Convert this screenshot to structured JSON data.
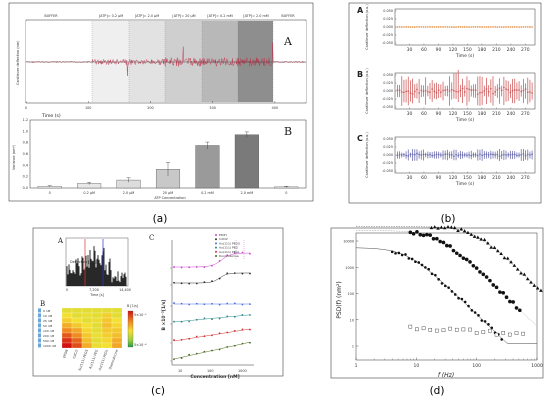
{
  "panels": {
    "a": {
      "caption": "(a)",
      "top": {
        "label": "A",
        "ylabel": "Cantilever deflection (nm)",
        "xlabel": "Time (s)",
        "segments": [
          "BUFFER",
          "[ATP]= 0.2 μM",
          "[ATP]= 2.0 μM",
          "[ATP]= 20 μM",
          "[ATP]= 0.2 mM",
          "[ATP]= 2.0 mM",
          "BUFFER"
        ]
      },
      "bottom": {
        "label": "B",
        "ylabel": "Variance (nm²)",
        "xlabel": "ATP Concentration"
      }
    },
    "b": {
      "caption": "(b)",
      "ylabel": "Cantilever deflection (a.u.)",
      "xlabel": "Time (s)",
      "subplots": [
        {
          "label": "A",
          "color": "#e8a060"
        },
        {
          "label": "B",
          "color": "#d06060"
        },
        {
          "label": "C",
          "color": "#7070b0"
        }
      ]
    },
    "c": {
      "caption": "(c)",
      "sub_a": {
        "label": "A",
        "ylabel": "Deflection [nm]",
        "xlabel": "Time [s]",
        "xticks": [
          "0",
          "7,200",
          "14,400"
        ]
      },
      "sub_b": {
        "label": "B",
        "rows": [
          "0 nM",
          "10 nM",
          "25 nM",
          "50 nM",
          "100 nM",
          "200 nM",
          "500 nM",
          "1000 nM"
        ],
        "cols": [
          "EPON",
          "CdCl2",
          "Au(111) PEGS",
          "Au(111) PEG",
          "Au(111) PEGL",
          "Doxorubicine"
        ],
        "colorbar_title": "Β [1/s]",
        "colorbar_top": "5×10⁻²",
        "colorbar_bottom": "5×10⁻⁴"
      },
      "sub_c": {
        "label": "C",
        "ylabel": "B ×10⁻²[1/s]",
        "xlabel": "Concentration [nM]",
        "legend": [
          "EtOH",
          "CdCl2",
          "Au(111) PEGS",
          "Au(111) PEG",
          "Au(111) PEGL",
          "Doxorubicine"
        ]
      }
    },
    "d": {
      "caption": "(d)",
      "ylabel": "PSD(f) (nm²)",
      "xlabel": "f (Hz)"
    }
  },
  "chart_data": [
    {
      "type": "line",
      "panel": "a-A",
      "title": "",
      "xlabel": "Time (s)",
      "ylabel": "Cantilever deflection (nm)",
      "xticks": [
        0,
        100,
        200,
        300,
        400
      ],
      "xlim": [
        0,
        450
      ]
    },
    {
      "type": "bar",
      "panel": "a-B",
      "xlabel": "ATP Concentration",
      "ylabel": "Variance (nm²)",
      "categories": [
        "0",
        "0.2 μM",
        "2.0 μM",
        "20 μM",
        "0.2 mM",
        "2.0 mM",
        "0"
      ],
      "values": [
        0.03,
        0.08,
        0.14,
        0.33,
        0.75,
        0.94,
        0.02
      ],
      "errors": [
        0.01,
        0.02,
        0.04,
        0.12,
        0.06,
        0.05,
        0.01
      ],
      "yticks": [
        "0.0",
        "0.2",
        "0.4",
        "0.6",
        "0.8",
        "1.0",
        "1.2"
      ],
      "ylim": [
        0,
        1.2
      ]
    },
    {
      "type": "scatter",
      "panel": "b",
      "xticks": [
        30,
        60,
        90,
        120,
        150,
        180,
        210,
        240,
        270
      ],
      "yticks": [
        "0.050",
        "0.025",
        "0.000",
        "-0.025",
        "-0.050"
      ],
      "xlim": [
        0,
        290
      ],
      "ylim": [
        -0.05,
        0.05
      ]
    },
    {
      "type": "bar",
      "panel": "c-A",
      "xticks": [
        "0",
        "7,200",
        "14,400"
      ]
    },
    {
      "type": "heatmap",
      "panel": "c-B",
      "rows": [
        "0 nM",
        "10 nM",
        "25 nM",
        "50 nM",
        "100 nM",
        "200 nM",
        "500 nM",
        "1000 nM"
      ],
      "cols": [
        "EPON",
        "CdCl2",
        "Au(111) PEGS",
        "Au(111) PEG",
        "Au(111) PEGL",
        "Doxorubicine"
      ],
      "values": [
        [
          0.5,
          0.5,
          0.5,
          0.5,
          0.5,
          0.5
        ],
        [
          0.55,
          0.5,
          0.52,
          0.5,
          0.6,
          0.5
        ],
        [
          0.6,
          0.55,
          0.5,
          0.52,
          0.62,
          0.55
        ],
        [
          0.7,
          0.62,
          0.55,
          0.5,
          0.65,
          0.58
        ],
        [
          0.8,
          0.72,
          0.58,
          0.5,
          0.62,
          0.62
        ],
        [
          0.88,
          0.8,
          0.62,
          0.52,
          0.6,
          0.65
        ],
        [
          0.95,
          0.86,
          0.65,
          0.5,
          0.58,
          0.7
        ],
        [
          1.0,
          0.9,
          0.7,
          0.52,
          0.55,
          0.72
        ]
      ]
    },
    {
      "type": "scatter",
      "panel": "c-C",
      "xlabel": "Concentration [nM]",
      "ylabel": "B ×10⁻²[1/s]",
      "xticks": [
        "10",
        "100",
        "1000"
      ]
    },
    {
      "type": "scatter",
      "panel": "d",
      "xlabel": "f (Hz)",
      "ylabel": "PSD(f) (nm²)",
      "xscale": "log",
      "yscale": "log",
      "xticks": [
        "1",
        "10",
        "100",
        "1000"
      ],
      "yticks": [
        "1",
        "10",
        "100",
        "1000",
        "10000"
      ]
    }
  ]
}
